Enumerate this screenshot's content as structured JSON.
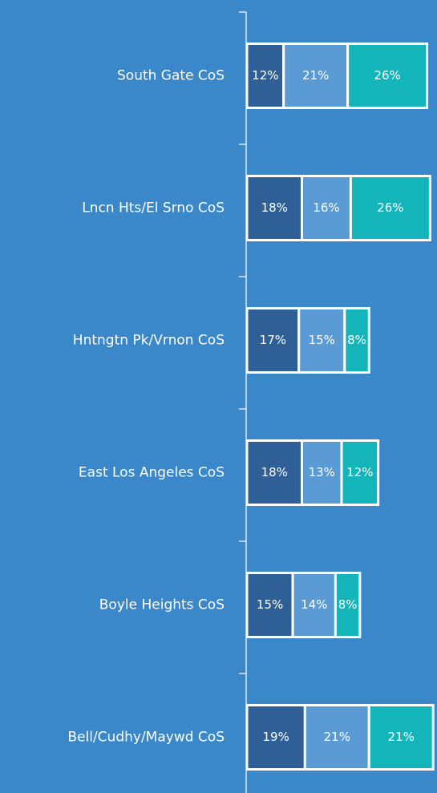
{
  "chart_data": {
    "type": "stacked-barh",
    "categories": [
      "South Gate CoS",
      "Lncn Hts/El Srno CoS",
      "Hntngtn Pk/Vrnon CoS",
      "East Los Angeles CoS",
      "Boyle Heights CoS",
      "Bell/Cudhy/Maywd CoS"
    ],
    "series": [
      {
        "color": "#2e5f97",
        "values": [
          12,
          18,
          17,
          18,
          15,
          19
        ],
        "value_labels": [
          "12%",
          "18%",
          "17%",
          "18%",
          "15%",
          "19%"
        ]
      },
      {
        "color": "#5b9bd5",
        "values": [
          21,
          16,
          15,
          13,
          14,
          21
        ],
        "value_labels": [
          "21%",
          "16%",
          "15%",
          "13%",
          "14%",
          "21%"
        ]
      },
      {
        "color": "#13b5bb",
        "values": [
          26,
          26,
          8,
          12,
          8,
          21
        ],
        "value_labels": [
          "26%",
          "26%",
          "8%",
          "12%",
          "8%",
          "21%"
        ]
      }
    ],
    "xlim": [
      0,
      62
    ]
  }
}
